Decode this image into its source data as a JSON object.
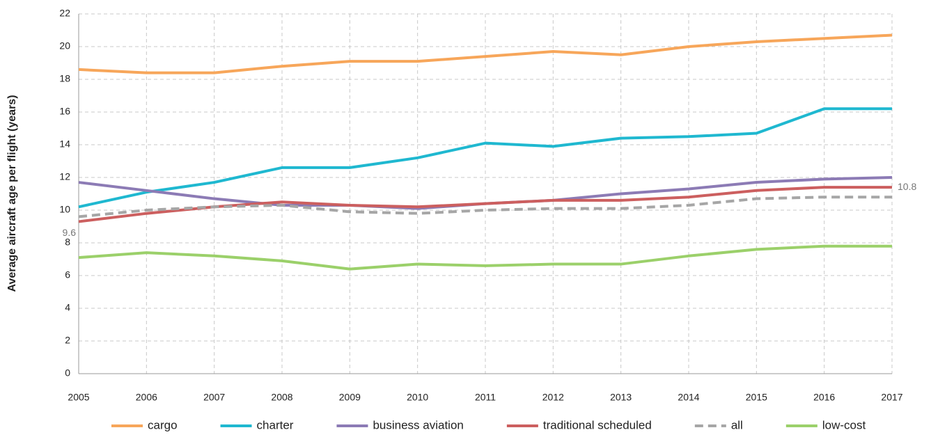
{
  "chart_data": {
    "type": "line",
    "y_label": "Average aircraft age per flight (years)",
    "x": [
      2005,
      2006,
      2007,
      2008,
      2009,
      2010,
      2011,
      2012,
      2013,
      2014,
      2015,
      2016,
      2017
    ],
    "xlim": [
      2005,
      2017
    ],
    "xticks": [
      2005,
      2006,
      2007,
      2008,
      2009,
      2010,
      2011,
      2012,
      2013,
      2014,
      2015,
      2016,
      2017
    ],
    "ylim": [
      0,
      22
    ],
    "yticks": [
      0,
      2,
      4,
      6,
      8,
      10,
      12,
      14,
      16,
      18,
      20,
      22
    ],
    "grid": true,
    "legend": "bottom",
    "series": [
      {
        "name": "cargo",
        "color": "#f7a65a",
        "values": [
          18.6,
          18.4,
          18.4,
          18.8,
          19.1,
          19.1,
          19.4,
          19.7,
          19.5,
          20.0,
          20.3,
          20.5,
          20.7
        ]
      },
      {
        "name": "charter",
        "color": "#1fb8d0",
        "values": [
          10.2,
          11.1,
          11.7,
          12.6,
          12.6,
          13.2,
          14.1,
          13.9,
          14.4,
          14.5,
          14.7,
          16.2,
          16.2
        ]
      },
      {
        "name": "business aviation",
        "color": "#8c7bb5",
        "values": [
          11.7,
          11.2,
          10.7,
          10.3,
          10.3,
          10.1,
          10.4,
          10.6,
          11.0,
          11.3,
          11.7,
          11.9,
          12.0
        ]
      },
      {
        "name": "traditional scheduled",
        "color": "#cc5f5f",
        "values": [
          9.3,
          9.8,
          10.2,
          10.5,
          10.3,
          10.2,
          10.4,
          10.6,
          10.6,
          10.8,
          11.2,
          11.4,
          11.4
        ]
      },
      {
        "name": "all",
        "color": "#a6a6a6",
        "dashed": true,
        "values": [
          9.6,
          10.0,
          10.2,
          10.3,
          9.9,
          9.8,
          10.0,
          10.1,
          10.1,
          10.3,
          10.7,
          10.8,
          10.8
        ],
        "value_labels": [
          "9.6",
          null,
          null,
          null,
          null,
          null,
          null,
          null,
          null,
          null,
          null,
          null,
          "10.8"
        ]
      },
      {
        "name": "low-cost",
        "color": "#9bd06a",
        "values": [
          7.1,
          7.4,
          7.2,
          6.9,
          6.4,
          6.7,
          6.6,
          6.7,
          6.7,
          7.2,
          7.6,
          7.8,
          7.8
        ]
      }
    ]
  }
}
